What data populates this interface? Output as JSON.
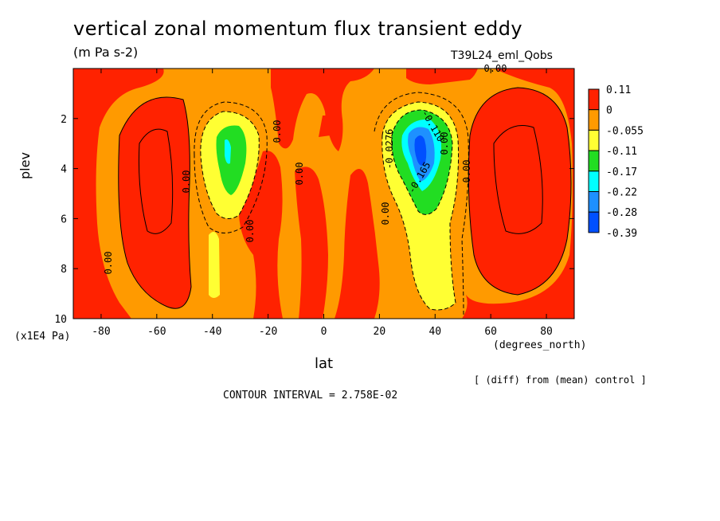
{
  "chart_data": {
    "type": "heatmap",
    "title": "vertical zonal momentum flux transient eddy",
    "units": "(m Pa s-2)",
    "run_label": "T39L24_eml_Qobs",
    "xlabel": "lat",
    "x_unit": "(degrees_north)",
    "ylabel": "plev",
    "y_unit": "(x1E4 Pa)",
    "xlim": [
      -90,
      90
    ],
    "ylim": [
      10,
      0
    ],
    "x_ticks": [
      "-80",
      "-60",
      "-40",
      "-20",
      "0",
      "20",
      "40",
      "60",
      "80"
    ],
    "x_tick_values": [
      -80,
      -60,
      -40,
      -20,
      0,
      20,
      40,
      60,
      80
    ],
    "y_ticks": [
      "2",
      "4",
      "6",
      "8",
      "10"
    ],
    "y_tick_values": [
      2,
      4,
      6,
      8,
      10
    ],
    "note": "[ (diff) from (mean) control ]",
    "contour_interval": "CONTOUR INTERVAL = 2.758E-02",
    "legend": {
      "labels": [
        "0.11",
        "0",
        "-0.055",
        "-0.11",
        "-0.17",
        "-0.22",
        "-0.28",
        "-0.39"
      ],
      "colors": [
        "#ff2200",
        "#ff9a00",
        "#ffff33",
        "#22dd22",
        "#00ffff",
        "#1e90ff",
        "#0050ff"
      ]
    },
    "contour_labels": [
      "0.00",
      "0.00",
      "0.00",
      "0.00",
      "0.00",
      "0.00",
      "0.00",
      "0.00",
      "-0.0276",
      "-0.110",
      "-0.165",
      "0.00"
    ],
    "features": [
      {
        "region": "southern hemisphere",
        "lat": -34,
        "plev": 4,
        "min_value": -0.17
      },
      {
        "region": "northern hemisphere",
        "lat": 34,
        "plev": 3.5,
        "min_value": -0.39
      }
    ]
  }
}
